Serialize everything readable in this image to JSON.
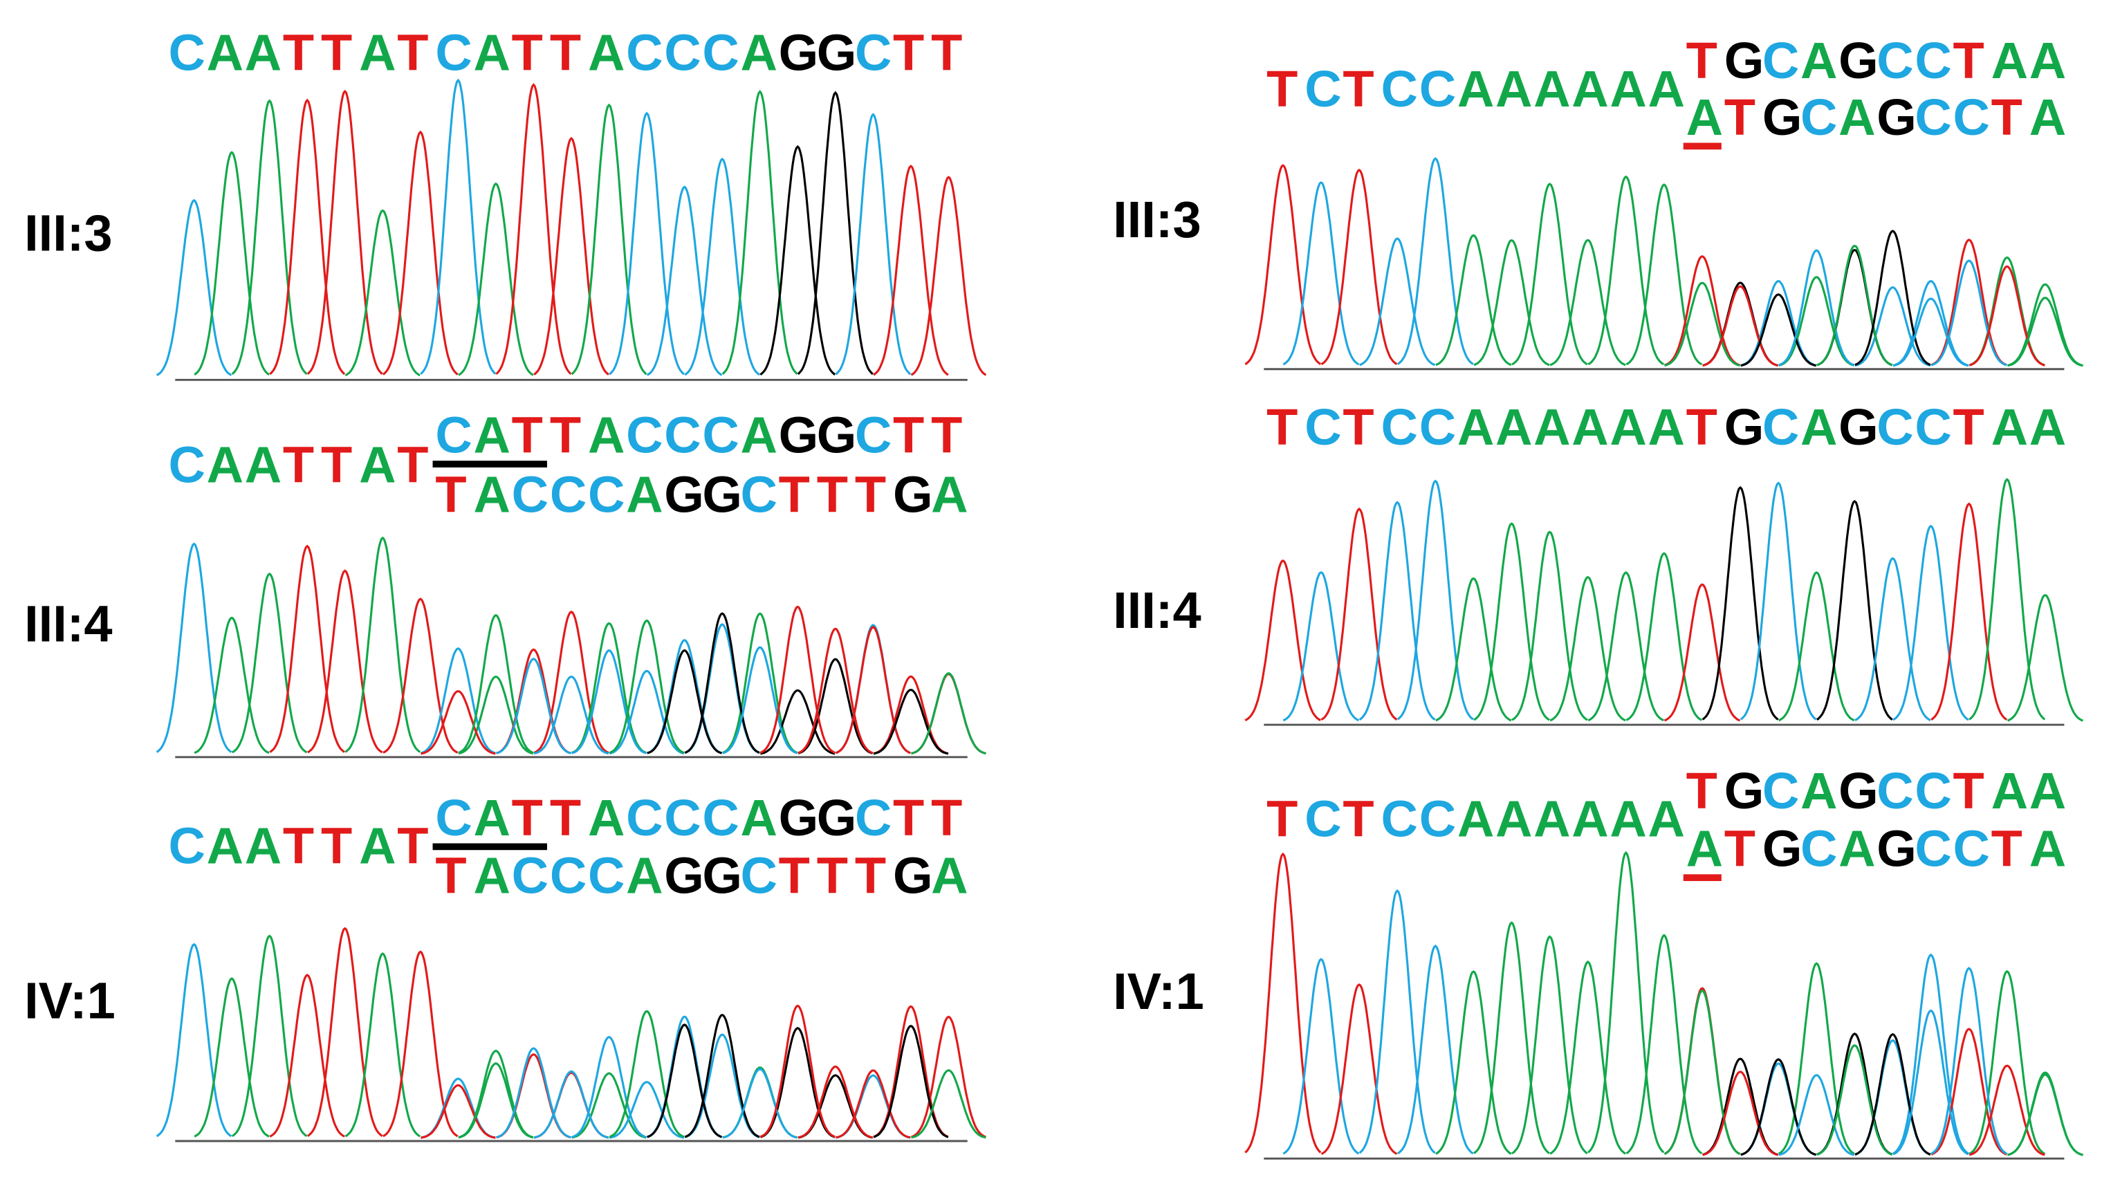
{
  "panels": [
    {
      "label": "III:3",
      "alleles": [
        "CAATTATCATTACCCAGGCTT"
      ]
    },
    {
      "label": "III:4",
      "prefix": "CAATTAT",
      "alleles": [
        "CATTACCCAGGCTT",
        "TACCCAGGCTTTGA"
      ]
    },
    {
      "label": "IV:1",
      "prefix": "CAATTAT",
      "alleles": [
        "CATTACCCAGGCTT",
        "TACCCAGGCTTTGA"
      ]
    },
    {
      "label": "III:3",
      "prefix": "TCTCCAAAAAA",
      "alleles": [
        "TGCAGCCTAA",
        "ATGCAGCCTA"
      ]
    },
    {
      "label": "III:4",
      "alleles": [
        "TCTCCAAAAAATGCAGCCTAA"
      ]
    },
    {
      "label": "IV:1",
      "prefix": "TCTCCAAAAAA",
      "alleles": [
        "TGCAGCCTAA",
        "ATGCAGCCTA"
      ]
    }
  ]
}
